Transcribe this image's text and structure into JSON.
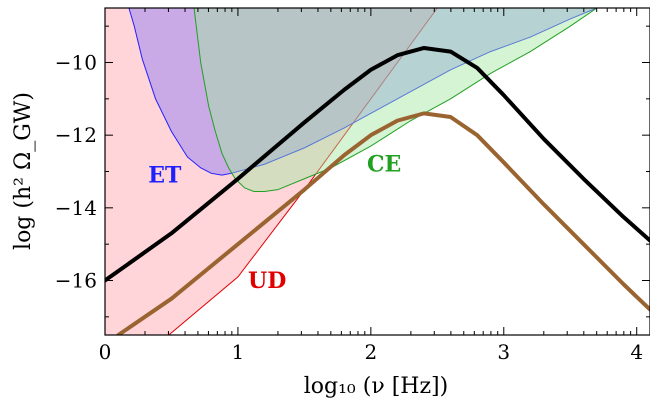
{
  "chart_data": {
    "type": "area",
    "title": "",
    "xlabel": "log₁₀ (ν [Hz])",
    "ylabel": "log (h² Ω_GW)",
    "xlim": [
      0,
      4.1
    ],
    "ylim": [
      -17.5,
      -8.5
    ],
    "xticks": [
      0,
      1,
      2,
      3,
      4
    ],
    "yticks": [
      -10,
      -12,
      -14,
      -16
    ],
    "xtick_labels": [
      "0",
      "1",
      "2",
      "3",
      "4"
    ],
    "ytick_labels": [
      "−10",
      "−12",
      "−14",
      "−16"
    ],
    "grid": false,
    "regions": [
      {
        "label": "UD",
        "label_pos": [
          1.22,
          -16.2
        ],
        "fill": "#ff9aa8",
        "stroke": "#e00000",
        "fill_opacity": 0.42,
        "x": [
          0,
          0.48,
          1.0,
          1.5,
          2.0,
          2.5,
          2.5,
          0
        ],
        "y": [
          -17.5,
          -17.5,
          -15.9,
          -13.5,
          -11.0,
          -8.5,
          -8.5,
          -8.5
        ]
      },
      {
        "label": "ET",
        "label_pos": [
          0.45,
          -13.3
        ],
        "fill": "#7f6df7",
        "stroke": "#2020ff",
        "fill_opacity": 0.42,
        "x": [
          0.18,
          0.22,
          0.28,
          0.38,
          0.5,
          0.62,
          0.72,
          0.8,
          0.88,
          0.95,
          1.2,
          1.5,
          1.8,
          2.0,
          2.3,
          2.6,
          2.9,
          3.2,
          3.5,
          3.7,
          3.7,
          0.18
        ],
        "y": [
          -8.5,
          -9.0,
          -9.9,
          -11.0,
          -11.9,
          -12.6,
          -12.9,
          -13.05,
          -13.1,
          -13.05,
          -12.8,
          -12.35,
          -11.8,
          -11.4,
          -10.8,
          -10.2,
          -9.7,
          -9.3,
          -8.8,
          -8.5,
          -8.5,
          -8.5
        ]
      },
      {
        "label": "CE",
        "label_pos": [
          2.1,
          -13.0
        ],
        "fill": "#a2e6a0",
        "stroke": "#22a022",
        "fill_opacity": 0.45,
        "x": [
          0.67,
          0.72,
          0.78,
          0.83,
          0.88,
          0.93,
          0.98,
          1.05,
          1.12,
          1.2,
          1.3,
          1.5,
          1.7,
          2.0,
          2.3,
          2.6,
          2.9,
          3.2,
          3.5,
          3.7,
          3.7,
          0.67
        ],
        "y": [
          -8.5,
          -10.0,
          -11.2,
          -11.9,
          -12.5,
          -12.9,
          -13.2,
          -13.45,
          -13.55,
          -13.55,
          -13.5,
          -13.2,
          -12.9,
          -12.3,
          -11.6,
          -11.0,
          -10.3,
          -9.7,
          -9.0,
          -8.5,
          -8.5,
          -8.5
        ]
      }
    ],
    "series": [
      {
        "color": "#000000",
        "x": [
          0,
          0.5,
          1.0,
          1.5,
          1.8,
          2.0,
          2.2,
          2.4,
          2.6,
          2.8,
          3.0,
          3.3,
          3.6,
          3.9,
          4.1
        ],
        "y": [
          -16.0,
          -14.7,
          -13.2,
          -11.65,
          -10.75,
          -10.2,
          -9.8,
          -9.6,
          -9.7,
          -10.15,
          -10.9,
          -12.1,
          -13.2,
          -14.25,
          -14.9
        ]
      },
      {
        "color": "#9a6431",
        "x": [
          0.1,
          0.5,
          1.0,
          1.5,
          1.8,
          2.0,
          2.2,
          2.4,
          2.6,
          2.8,
          3.0,
          3.3,
          3.6,
          3.9,
          4.1
        ],
        "y": [
          -17.5,
          -16.5,
          -15.0,
          -13.5,
          -12.55,
          -12.0,
          -11.6,
          -11.4,
          -11.5,
          -12.0,
          -12.75,
          -13.9,
          -15.0,
          -16.1,
          -16.8
        ]
      }
    ]
  }
}
